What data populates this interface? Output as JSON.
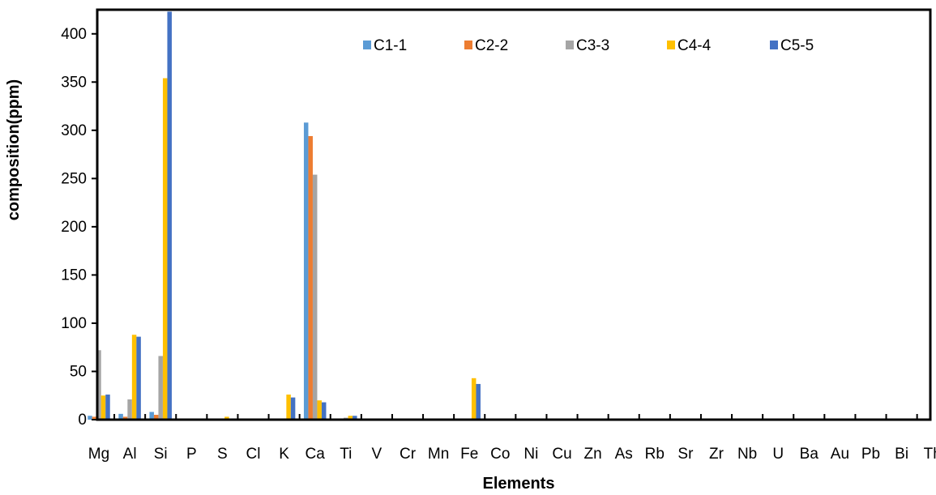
{
  "chart_data": {
    "type": "bar",
    "title": "",
    "xlabel": "Elements",
    "ylabel": "composition(ppm)",
    "ylim": [
      0,
      425
    ],
    "yticks": [
      0,
      50,
      100,
      150,
      200,
      250,
      300,
      350,
      400
    ],
    "grid": false,
    "legend_position": "top-right",
    "categories": [
      "Mg",
      "Al",
      "Si",
      "P",
      "S",
      "Cl",
      "K",
      "Ca",
      "Ti",
      "V",
      "Cr",
      "Mn",
      "Fe",
      "Co",
      "Ni",
      "Cu",
      "Zn",
      "As",
      "Rb",
      "Sr",
      "Zr",
      "Nb",
      "U",
      "Ba",
      "Au",
      "Pb",
      "Bi",
      "Th"
    ],
    "series": [
      {
        "name": "C1-1",
        "color": "#5B9BD5",
        "values": [
          4,
          6,
          8,
          0,
          0,
          0,
          0,
          308,
          1,
          0,
          0,
          0,
          0,
          0,
          0,
          0,
          0,
          0,
          0,
          0,
          0,
          0,
          0,
          0,
          0,
          0,
          0,
          0
        ]
      },
      {
        "name": "C2-2",
        "color": "#ED7D31",
        "values": [
          3,
          3,
          5,
          0,
          0,
          0,
          0,
          294,
          1,
          0,
          0,
          0,
          0,
          0,
          0,
          0,
          0,
          0,
          0,
          0,
          0,
          0,
          0,
          0,
          0,
          0,
          0,
          0
        ]
      },
      {
        "name": "C3-3",
        "color": "#A5A5A5",
        "values": [
          72,
          21,
          66,
          0,
          1,
          0,
          0,
          254,
          2,
          0,
          0,
          0,
          0,
          0,
          0,
          0,
          0,
          0,
          0,
          0,
          0,
          0,
          0,
          0,
          0,
          0,
          0,
          0
        ]
      },
      {
        "name": "C4-4",
        "color": "#FFC000",
        "values": [
          25,
          88,
          354,
          0,
          3,
          0,
          26,
          20,
          4,
          0,
          0,
          0,
          43,
          0,
          0,
          0,
          0,
          0,
          0,
          0,
          0,
          0,
          0,
          0,
          0,
          0,
          0,
          0
        ]
      },
      {
        "name": "C5-5",
        "color": "#4472C4",
        "values": [
          26,
          86,
          423,
          0,
          1,
          0,
          23,
          18,
          4,
          0,
          0,
          0,
          37,
          0,
          0,
          0,
          0,
          0,
          0,
          0,
          0,
          0,
          0,
          0,
          0,
          0,
          0,
          0
        ]
      }
    ]
  }
}
